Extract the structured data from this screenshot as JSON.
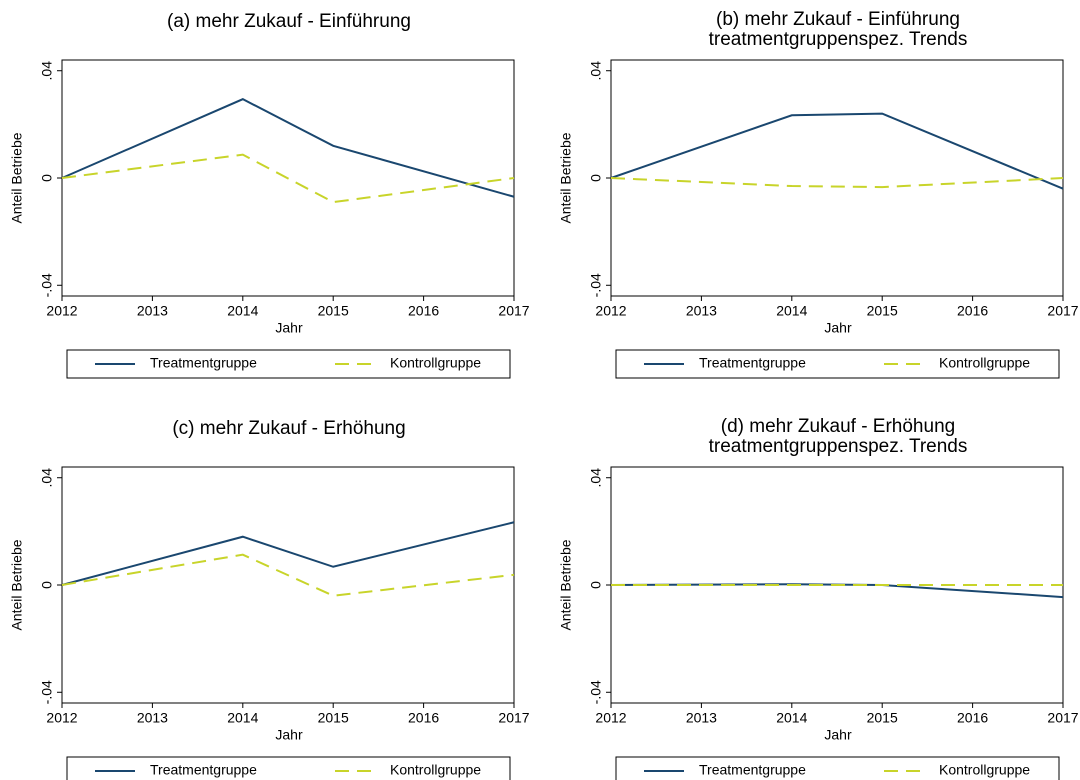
{
  "chart_data": [
    {
      "type": "line",
      "title": "(a) mehr Zukauf - Einführung",
      "x_label": "Jahr",
      "y_label": "Anteil Betriebe",
      "x": [
        2012,
        2014,
        2015,
        2017
      ],
      "xlim": [
        2012,
        2017
      ],
      "xticks": [
        2012,
        2013,
        2014,
        2015,
        2016,
        2017
      ],
      "ylim": [
        -0.044,
        0.044
      ],
      "yticks": [
        {
          "value": -0.04,
          "label": "-.04"
        },
        0,
        {
          "value": 0.04,
          "label": ".04"
        }
      ],
      "series": [
        {
          "name": "Treatmentgruppe",
          "color": "#1a476f",
          "values": [
            0,
            0.0294,
            0.012,
            -0.007
          ]
        },
        {
          "name": "Kontrollgruppe",
          "color": "#c8d42a",
          "dashed": true,
          "values": [
            0,
            0.0087,
            -0.009,
            0
          ]
        }
      ]
    },
    {
      "type": "line",
      "title": "(b) mehr Zukauf - Einführung",
      "subtitle": "treatmentgruppenspez. Trends",
      "x_label": "Jahr",
      "y_label": "Anteil Betriebe",
      "x": [
        2012,
        2014,
        2015,
        2017
      ],
      "xlim": [
        2012,
        2017
      ],
      "xticks": [
        2012,
        2013,
        2014,
        2015,
        2016,
        2017
      ],
      "ylim": [
        -0.044,
        0.044
      ],
      "yticks": [
        {
          "value": -0.04,
          "label": "-.04"
        },
        0,
        {
          "value": 0.04,
          "label": ".04"
        }
      ],
      "series": [
        {
          "name": "Treatmentgruppe",
          "color": "#1a476f",
          "values": [
            0,
            0.0234,
            0.024,
            -0.004
          ]
        },
        {
          "name": "Kontrollgruppe",
          "color": "#c8d42a",
          "dashed": true,
          "values": [
            0,
            -0.003,
            -0.0034,
            0
          ]
        }
      ]
    },
    {
      "type": "line",
      "title": "(c) mehr Zukauf - Erhöhung",
      "x_label": "Jahr",
      "y_label": "Anteil Betriebe",
      "x": [
        2012,
        2014,
        2015,
        2017
      ],
      "xlim": [
        2012,
        2017
      ],
      "xticks": [
        2012,
        2013,
        2014,
        2015,
        2016,
        2017
      ],
      "ylim": [
        -0.044,
        0.044
      ],
      "yticks": [
        {
          "value": -0.04,
          "label": "-.04"
        },
        0,
        {
          "value": 0.04,
          "label": ".04"
        }
      ],
      "series": [
        {
          "name": "Treatmentgruppe",
          "color": "#1a476f",
          "values": [
            0,
            0.018,
            0.0068,
            0.0234
          ]
        },
        {
          "name": "Kontrollgruppe",
          "color": "#c8d42a",
          "dashed": true,
          "values": [
            0,
            0.0113,
            -0.004,
            0.0038
          ]
        }
      ]
    },
    {
      "type": "line",
      "title": "(d) mehr Zukauf - Erhöhung",
      "subtitle": "treatmentgruppenspez. Trends",
      "x_label": "Jahr",
      "y_label": "Anteil Betriebe",
      "x": [
        2012,
        2014,
        2015,
        2017
      ],
      "xlim": [
        2012,
        2017
      ],
      "xticks": [
        2012,
        2013,
        2014,
        2015,
        2016,
        2017
      ],
      "ylim": [
        -0.044,
        0.044
      ],
      "yticks": [
        {
          "value": -0.04,
          "label": "-.04"
        },
        0,
        {
          "value": 0.04,
          "label": ".04"
        }
      ],
      "series": [
        {
          "name": "Treatmentgruppe",
          "color": "#1a476f",
          "values": [
            0,
            0.0003,
            0,
            -0.0045
          ]
        },
        {
          "name": "Kontrollgruppe",
          "color": "#c8d42a",
          "dashed": true,
          "values": [
            0,
            0,
            0,
            0
          ]
        }
      ]
    }
  ]
}
